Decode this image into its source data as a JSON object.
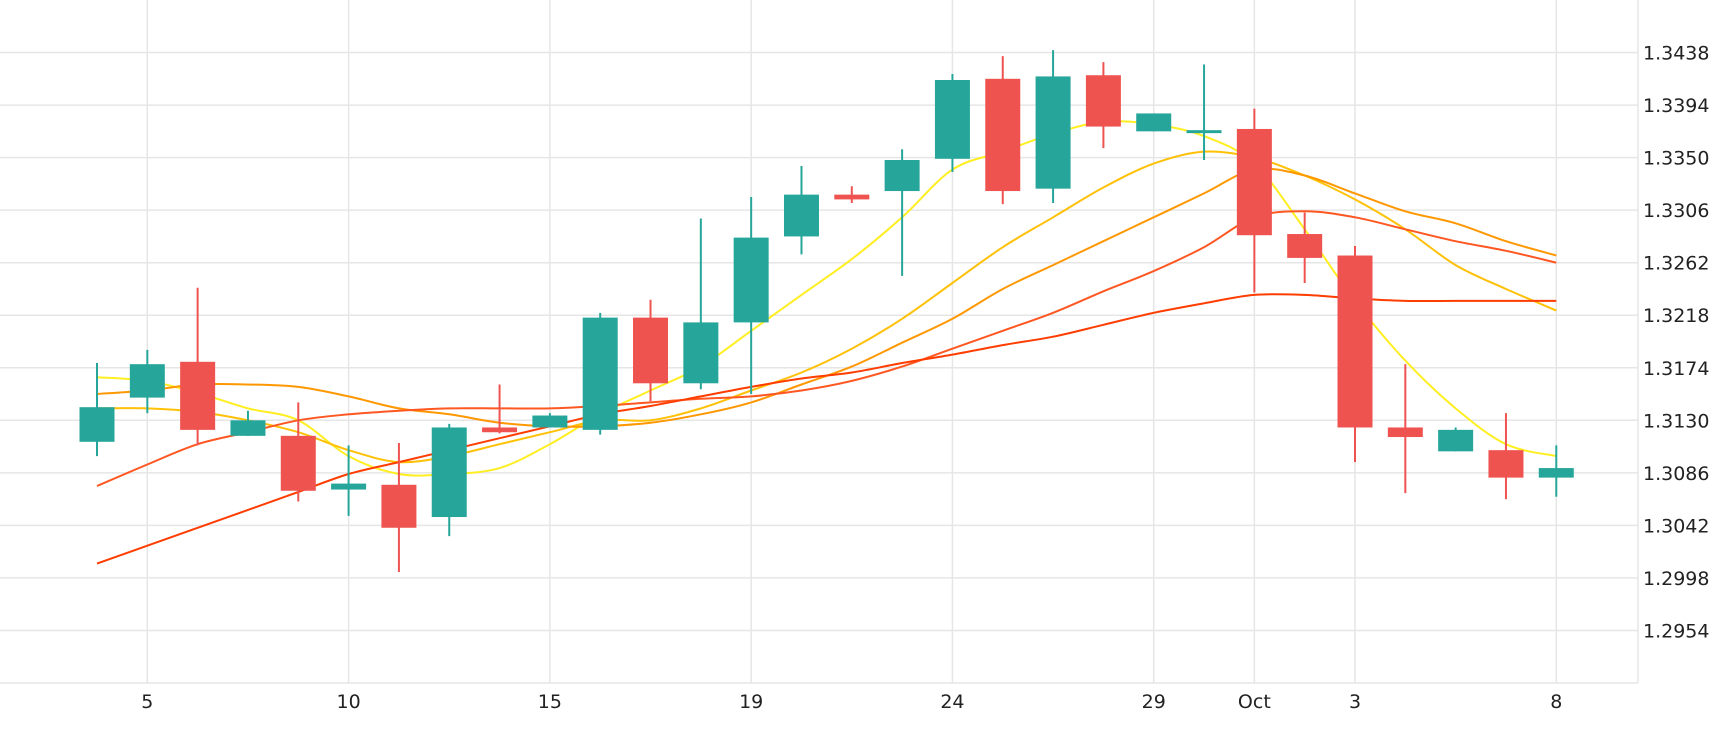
{
  "chart_data": {
    "type": "candlestick",
    "title": "",
    "xlabel": "",
    "ylabel": "",
    "ylim": [
      1.291,
      1.3482
    ],
    "grid": true,
    "y_ticks": [
      "1.3438",
      "1.3394",
      "1.3350",
      "1.3306",
      "1.3262",
      "1.3218",
      "1.3174",
      "1.3130",
      "1.3086",
      "1.3042",
      "1.2998",
      "1.2954"
    ],
    "x_ticks": [
      {
        "label": "5",
        "index": 1
      },
      {
        "label": "10",
        "index": 5
      },
      {
        "label": "15",
        "index": 9
      },
      {
        "label": "19",
        "index": 13
      },
      {
        "label": "24",
        "index": 17
      },
      {
        "label": "29",
        "index": 21
      },
      {
        "label": "Oct",
        "index": 23
      },
      {
        "label": "3",
        "index": 25
      },
      {
        "label": "8",
        "index": 29
      }
    ],
    "colors": {
      "up": "#26a69a",
      "down": "#ef5350",
      "grid": "#e6e6e6",
      "ma": [
        "#ffee22",
        "#ffc107",
        "#ff9800",
        "#ff5722",
        "#ff3d00"
      ]
    },
    "candles": [
      {
        "o": 1.3112,
        "h": 1.3178,
        "l": 1.31,
        "c": 1.3141
      },
      {
        "o": 1.3149,
        "h": 1.3189,
        "l": 1.3136,
        "c": 1.3177
      },
      {
        "o": 1.3179,
        "h": 1.3241,
        "l": 1.3109,
        "c": 1.3122
      },
      {
        "o": 1.3117,
        "h": 1.3138,
        "l": 1.3117,
        "c": 1.313
      },
      {
        "o": 1.3117,
        "h": 1.3145,
        "l": 1.3062,
        "c": 1.3071
      },
      {
        "o": 1.3072,
        "h": 1.3109,
        "l": 1.305,
        "c": 1.3077
      },
      {
        "o": 1.3076,
        "h": 1.3111,
        "l": 1.3003,
        "c": 1.304
      },
      {
        "o": 1.3049,
        "h": 1.3127,
        "l": 1.3033,
        "c": 1.3124
      },
      {
        "o": 1.3124,
        "h": 1.316,
        "l": 1.3119,
        "c": 1.312
      },
      {
        "o": 1.3124,
        "h": 1.3136,
        "l": 1.3124,
        "c": 1.3134
      },
      {
        "o": 1.3122,
        "h": 1.322,
        "l": 1.3118,
        "c": 1.3216
      },
      {
        "o": 1.3216,
        "h": 1.3231,
        "l": 1.3146,
        "c": 1.3161
      },
      {
        "o": 1.3161,
        "h": 1.3299,
        "l": 1.3156,
        "c": 1.3212
      },
      {
        "o": 1.3212,
        "h": 1.3317,
        "l": 1.3152,
        "c": 1.3283
      },
      {
        "o": 1.3284,
        "h": 1.3343,
        "l": 1.3269,
        "c": 1.3319
      },
      {
        "o": 1.3319,
        "h": 1.3326,
        "l": 1.3312,
        "c": 1.3315
      },
      {
        "o": 1.3322,
        "h": 1.3357,
        "l": 1.3251,
        "c": 1.3348
      },
      {
        "o": 1.3349,
        "h": 1.342,
        "l": 1.3338,
        "c": 1.3415
      },
      {
        "o": 1.3416,
        "h": 1.3435,
        "l": 1.3311,
        "c": 1.3322
      },
      {
        "o": 1.3324,
        "h": 1.344,
        "l": 1.3312,
        "c": 1.3418
      },
      {
        "o": 1.3419,
        "h": 1.343,
        "l": 1.3358,
        "c": 1.3376
      },
      {
        "o": 1.3372,
        "h": 1.3387,
        "l": 1.3372,
        "c": 1.3387
      },
      {
        "o": 1.3372,
        "h": 1.3428,
        "l": 1.3348,
        "c": 1.3373
      },
      {
        "o": 1.3374,
        "h": 1.3391,
        "l": 1.3237,
        "c": 1.3285
      },
      {
        "o": 1.3286,
        "h": 1.3304,
        "l": 1.3245,
        "c": 1.3266
      },
      {
        "o": 1.3268,
        "h": 1.3276,
        "l": 1.3095,
        "c": 1.3124
      },
      {
        "o": 1.3124,
        "h": 1.3177,
        "l": 1.3069,
        "c": 1.3116
      },
      {
        "o": 1.3104,
        "h": 1.3124,
        "l": 1.3104,
        "c": 1.3122
      },
      {
        "o": 1.3105,
        "h": 1.3136,
        "l": 1.3064,
        "c": 1.3082
      },
      {
        "o": 1.3082,
        "h": 1.3109,
        "l": 1.3066,
        "c": 1.309
      }
    ],
    "moving_averages": [
      {
        "values": [
          1.3166,
          1.3163,
          1.3153,
          1.314,
          1.313,
          1.31,
          1.3085,
          1.3085,
          1.309,
          1.311,
          1.3135,
          1.3155,
          1.3175,
          1.3205,
          1.3235,
          1.3265,
          1.33,
          1.334,
          1.3355,
          1.337,
          1.338,
          1.3378,
          1.3368,
          1.3345,
          1.329,
          1.323,
          1.318,
          1.314,
          1.311,
          1.31
        ]
      },
      {
        "values": [
          1.314,
          1.314,
          1.3137,
          1.313,
          1.312,
          1.3105,
          1.3095,
          1.31,
          1.311,
          1.312,
          1.313,
          1.313,
          1.314,
          1.3155,
          1.317,
          1.319,
          1.3215,
          1.3245,
          1.3275,
          1.33,
          1.3325,
          1.3345,
          1.3355,
          1.335,
          1.3335,
          1.3315,
          1.329,
          1.326,
          1.324,
          1.3222
        ]
      },
      {
        "values": [
          1.3152,
          1.3155,
          1.316,
          1.316,
          1.3158,
          1.315,
          1.314,
          1.3135,
          1.3128,
          1.3125,
          1.3125,
          1.3128,
          1.3135,
          1.3145,
          1.316,
          1.3175,
          1.3195,
          1.3215,
          1.324,
          1.326,
          1.328,
          1.33,
          1.332,
          1.334,
          1.3335,
          1.332,
          1.3305,
          1.3295,
          1.328,
          1.3268
        ]
      },
      {
        "values": [
          1.3075,
          1.3093,
          1.311,
          1.312,
          1.313,
          1.3135,
          1.3138,
          1.314,
          1.314,
          1.314,
          1.3142,
          1.3145,
          1.3148,
          1.315,
          1.3155,
          1.3163,
          1.3175,
          1.319,
          1.3205,
          1.322,
          1.3238,
          1.3255,
          1.3275,
          1.33,
          1.3305,
          1.33,
          1.329,
          1.328,
          1.3272,
          1.3262
        ]
      },
      {
        "values": [
          1.301,
          1.3025,
          1.304,
          1.3055,
          1.307,
          1.3085,
          1.3095,
          1.3105,
          1.3115,
          1.3125,
          1.3135,
          1.3142,
          1.315,
          1.3158,
          1.3165,
          1.317,
          1.3178,
          1.3185,
          1.3193,
          1.32,
          1.321,
          1.322,
          1.3228,
          1.3235,
          1.3235,
          1.3232,
          1.323,
          1.323,
          1.323,
          1.323
        ]
      }
    ]
  }
}
